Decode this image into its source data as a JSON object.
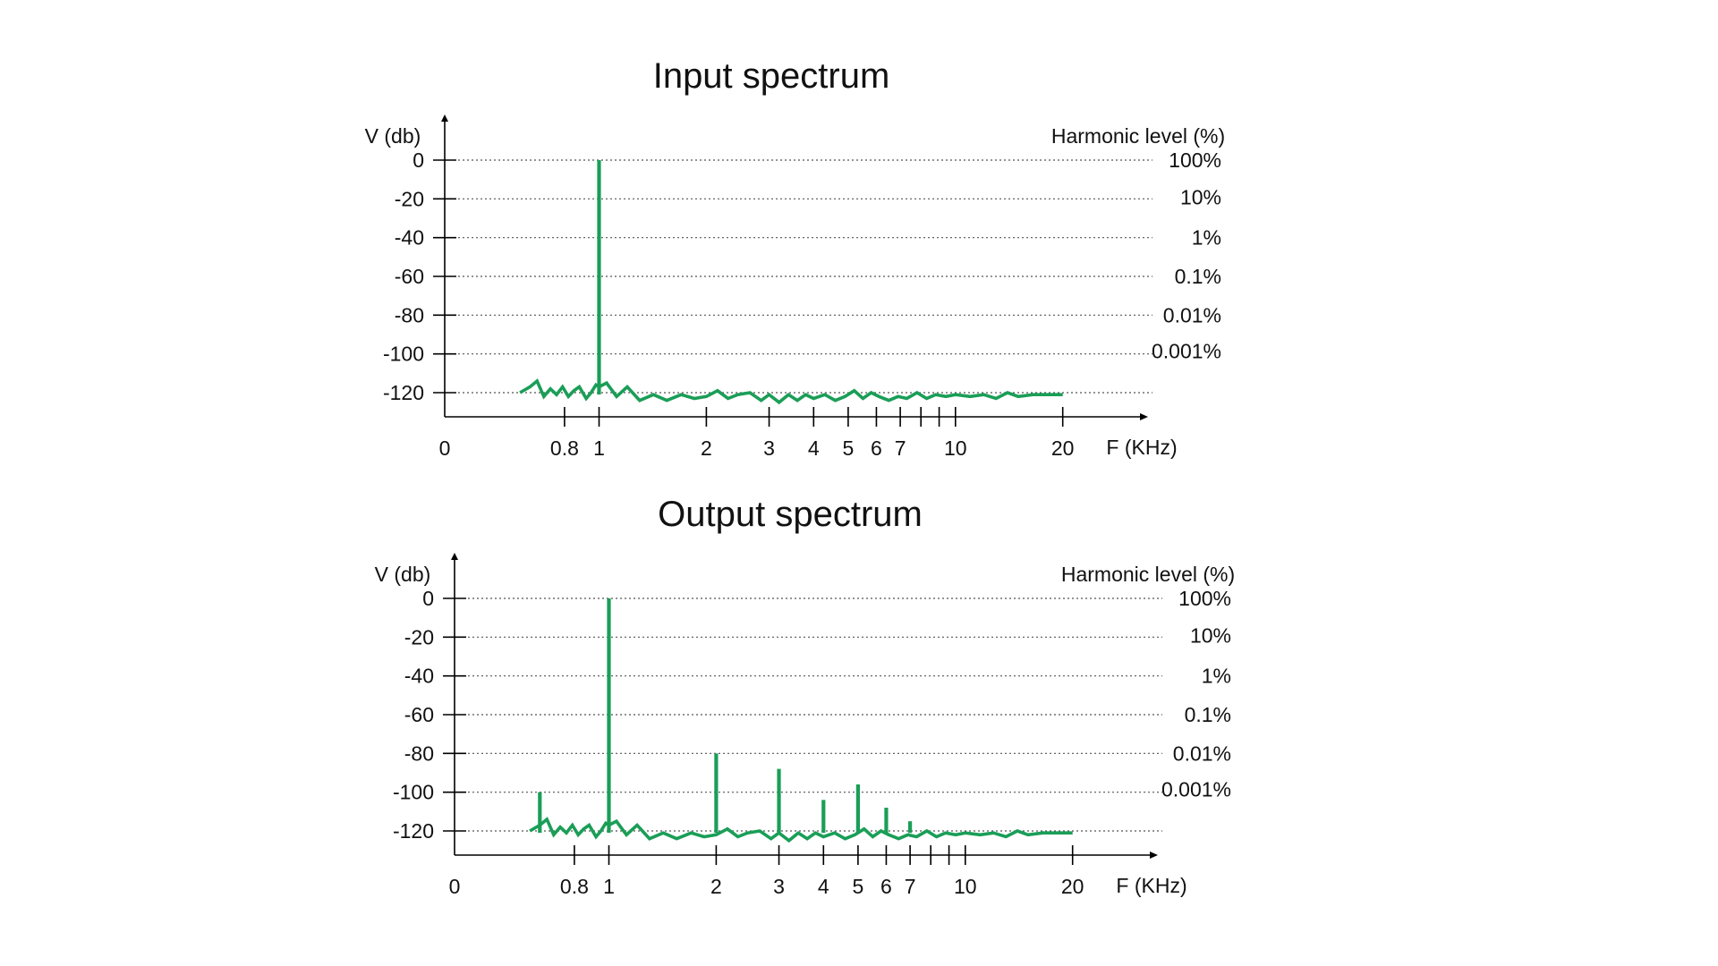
{
  "chart_data": [
    {
      "type": "line",
      "title": "Input spectrum",
      "ylabel": "V (db)",
      "xlabel": "F (KHz)",
      "right_axis_label": "Harmonic level (%)",
      "yticks": [
        0,
        -20,
        -40,
        -60,
        -80,
        -100,
        -120
      ],
      "right_ticks": [
        "100%",
        "10%",
        "1%",
        "0.1%",
        "0.01%",
        "0.001%"
      ],
      "xticks_labeled": [
        "0",
        "0.8",
        "1",
        "2",
        "3",
        "4",
        "5",
        "6",
        "7",
        "10",
        "20"
      ],
      "xticks_unlabeled": [
        8,
        9
      ],
      "ylim": [
        -120,
        0
      ],
      "x_scale": "log",
      "grid": "dotted",
      "color": "#1a9e57",
      "noise_floor": {
        "x": [
          0.6,
          0.64,
          0.67,
          0.7,
          0.73,
          0.76,
          0.79,
          0.82,
          0.85,
          0.88,
          0.92,
          0.95,
          0.98,
          1.0,
          1.05,
          1.12,
          1.2,
          1.3,
          1.42,
          1.55,
          1.7,
          1.85,
          2.0,
          2.15,
          2.3,
          2.45,
          2.65,
          2.85,
          3.0,
          3.2,
          3.4,
          3.6,
          3.8,
          4.0,
          4.3,
          4.6,
          4.9,
          5.2,
          5.5,
          5.8,
          6.1,
          6.5,
          6.9,
          7.3,
          7.8,
          8.3,
          8.8,
          9.4,
          10.0,
          11.0,
          12.0,
          13.0,
          14.0,
          15.0,
          16.5,
          18.0,
          20.0
        ],
        "y": [
          -120,
          -117,
          -114,
          -122,
          -118,
          -121,
          -117,
          -122,
          -119,
          -117,
          -123,
          -120,
          -116,
          -117,
          -115,
          -122,
          -117,
          -124,
          -121,
          -124,
          -121,
          -123,
          -122,
          -119,
          -123,
          -121,
          -120,
          -124,
          -121,
          -125,
          -121,
          -124,
          -121,
          -123,
          -121,
          -124,
          -122,
          -119,
          -123,
          -120,
          -122,
          -124,
          -122,
          -123,
          -120,
          -123,
          -121,
          -122,
          -121,
          -122,
          -121,
          -123,
          -120,
          -122,
          -121,
          -121,
          -121
        ]
      },
      "peaks": [
        {
          "x": 1,
          "y": 0
        }
      ]
    },
    {
      "type": "line",
      "title": "Output spectrum",
      "ylabel": "V (db)",
      "xlabel": "F (KHz)",
      "right_axis_label": "Harmonic level (%)",
      "yticks": [
        0,
        -20,
        -40,
        -60,
        -80,
        -100,
        -120
      ],
      "right_ticks": [
        "100%",
        "10%",
        "1%",
        "0.1%",
        "0.01%",
        "0.001%"
      ],
      "xticks_labeled": [
        "0",
        "0.8",
        "1",
        "2",
        "3",
        "4",
        "5",
        "6",
        "7",
        "10",
        "20"
      ],
      "xticks_unlabeled": [
        8,
        9
      ],
      "ylim": [
        -120,
        0
      ],
      "x_scale": "log",
      "grid": "dotted",
      "color": "#1a9e57",
      "noise_floor": {
        "x": [
          0.6,
          0.64,
          0.67,
          0.7,
          0.73,
          0.76,
          0.79,
          0.82,
          0.85,
          0.88,
          0.92,
          0.95,
          0.98,
          1.0,
          1.05,
          1.12,
          1.2,
          1.3,
          1.42,
          1.55,
          1.7,
          1.85,
          2.0,
          2.15,
          2.3,
          2.45,
          2.65,
          2.85,
          3.0,
          3.2,
          3.4,
          3.6,
          3.8,
          4.0,
          4.3,
          4.6,
          4.9,
          5.2,
          5.5,
          5.8,
          6.1,
          6.5,
          6.9,
          7.3,
          7.8,
          8.3,
          8.8,
          9.4,
          10.0,
          11.0,
          12.0,
          13.0,
          14.0,
          15.0,
          16.5,
          18.0,
          20.0
        ],
        "y": [
          -120,
          -117,
          -114,
          -122,
          -118,
          -121,
          -117,
          -122,
          -119,
          -117,
          -123,
          -120,
          -116,
          -117,
          -115,
          -122,
          -117,
          -124,
          -121,
          -124,
          -121,
          -123,
          -122,
          -119,
          -123,
          -121,
          -120,
          -124,
          -121,
          -125,
          -121,
          -124,
          -121,
          -123,
          -121,
          -124,
          -122,
          -119,
          -123,
          -120,
          -122,
          -124,
          -122,
          -123,
          -120,
          -123,
          -121,
          -122,
          -121,
          -122,
          -121,
          -123,
          -120,
          -122,
          -121,
          -121,
          -121
        ]
      },
      "peaks": [
        {
          "x": 0.64,
          "y": -100
        },
        {
          "x": 1,
          "y": 0
        },
        {
          "x": 2,
          "y": -80
        },
        {
          "x": 3,
          "y": -88
        },
        {
          "x": 4,
          "y": -104
        },
        {
          "x": 5,
          "y": -96
        },
        {
          "x": 6,
          "y": -108
        },
        {
          "x": 7,
          "y": -115
        }
      ]
    }
  ]
}
